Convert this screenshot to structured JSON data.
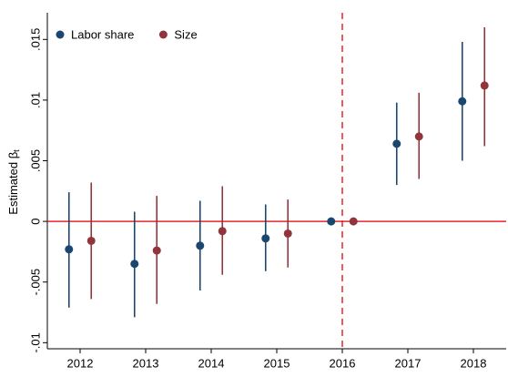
{
  "chart_data": {
    "type": "errorbar",
    "ylabel": "Estimated β",
    "ylabel_subscript": "t",
    "x": [
      2012,
      2013,
      2014,
      2015,
      2016,
      2017,
      2018
    ],
    "series": [
      {
        "name": "Labor share",
        "color": "#1a476f",
        "values": [
          -0.0023,
          -0.0035,
          -0.002,
          -0.0014,
          0,
          0.0064,
          0.0099
        ],
        "lower": [
          -0.0071,
          -0.0079,
          -0.0057,
          -0.0041,
          null,
          0.003,
          0.005
        ],
        "upper": [
          0.0024,
          0.0008,
          0.0017,
          0.0014,
          null,
          0.0098,
          0.0148
        ]
      },
      {
        "name": "Size",
        "color": "#90353b",
        "values": [
          -0.0016,
          -0.0024,
          -0.0008,
          -0.001,
          0,
          0.007,
          0.0112
        ],
        "lower": [
          -0.0064,
          -0.0068,
          -0.0044,
          -0.0038,
          null,
          0.0035,
          0.0062
        ],
        "upper": [
          0.0032,
          0.0021,
          0.0029,
          0.0018,
          null,
          0.0106,
          0.016
        ]
      }
    ],
    "xlim": [
      2011.5,
      2018.5
    ],
    "xticks": [
      2012,
      2013,
      2014,
      2015,
      2016,
      2017,
      2018
    ],
    "ylim": [
      -0.0105,
      0.0172
    ],
    "yticks": [
      {
        "value": -0.01,
        "label": "-.01"
      },
      {
        "value": -0.005,
        "label": "-.005"
      },
      0,
      {
        "value": 0.005,
        "label": ".005"
      },
      {
        "value": 0.01,
        "label": ".01"
      },
      {
        "value": 0.015,
        "label": ".015"
      }
    ],
    "hline": 0,
    "vline": 2016,
    "ref_color": "#e8262b",
    "legend": "top-left",
    "grid": false
  }
}
